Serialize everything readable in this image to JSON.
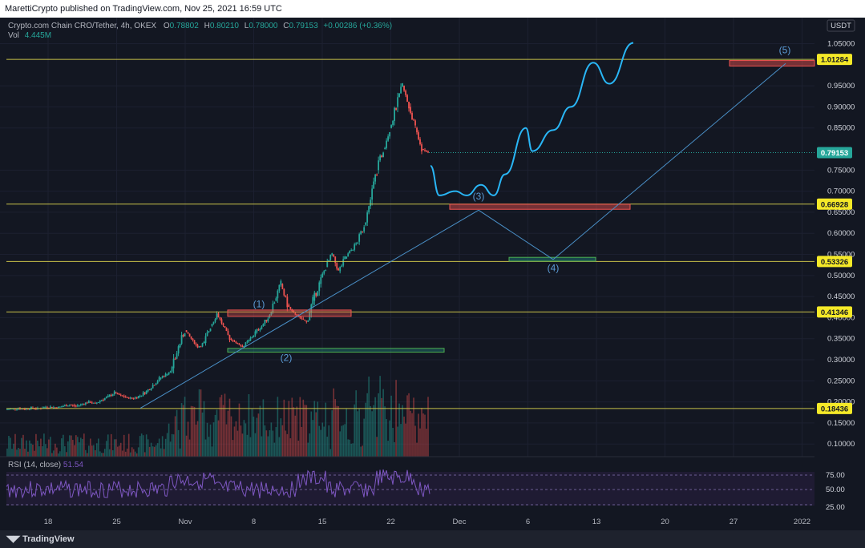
{
  "publish_line": "MarettiCrypto published on TradingView.com, Nov 25, 2021 16:59 UTC",
  "footer_brand": "TradingView",
  "header": {
    "symbol": "Crypto.com Chain CRO/Tether, 4h, OKEX",
    "open_label": "O",
    "open": "0.78802",
    "high_label": "H",
    "high": "0.80210",
    "low_label": "L",
    "low": "0.78000",
    "close_label": "C",
    "close": "0.79153",
    "change": "+0.00286 (+0.36%)",
    "vol_label": "Vol",
    "vol": "4.445M"
  },
  "chart_data": {
    "type": "candlestick",
    "currency": "USDT",
    "y_ticks": [
      "1.05000",
      "0.95000",
      "0.90000",
      "0.85000",
      "0.75000",
      "0.70000",
      "0.65000",
      "0.60000",
      "0.55000",
      "0.50000",
      "0.45000",
      "0.40000",
      "0.35000",
      "0.30000",
      "0.25000",
      "0.20000",
      "0.15000",
      "0.10000"
    ],
    "ylim": [
      0.07,
      1.07
    ],
    "x_ticks": [
      "18",
      "25",
      "Nov",
      "8",
      "15",
      "22",
      "Dec",
      "6",
      "13",
      "20",
      "27",
      "2022"
    ],
    "horizontal_levels": [
      {
        "value": 1.01284,
        "label": "1.01284"
      },
      {
        "value": 0.66928,
        "label": "0.66928"
      },
      {
        "value": 0.53326,
        "label": "0.53326"
      },
      {
        "value": 0.41346,
        "label": "0.41346"
      },
      {
        "value": 0.18436,
        "label": "0.18436"
      }
    ],
    "last_price": {
      "value": 0.79153,
      "label": "0.79153"
    },
    "wave_labels": [
      "(1)",
      "(2)",
      "(3)",
      "(4)",
      "(5)"
    ],
    "price_path": [
      [
        0.182,
        0.184
      ],
      [
        0.183,
        0.185
      ],
      [
        0.184,
        0.183
      ],
      [
        0.183,
        0.186
      ],
      [
        0.186,
        0.184
      ],
      [
        0.184,
        0.187
      ],
      [
        0.187,
        0.188
      ],
      [
        0.188,
        0.186
      ],
      [
        0.186,
        0.19
      ],
      [
        0.19,
        0.193
      ],
      [
        0.193,
        0.19
      ],
      [
        0.19,
        0.195
      ],
      [
        0.195,
        0.2
      ],
      [
        0.2,
        0.196
      ],
      [
        0.196,
        0.205
      ],
      [
        0.205,
        0.212
      ],
      [
        0.212,
        0.222
      ],
      [
        0.222,
        0.215
      ],
      [
        0.215,
        0.21
      ],
      [
        0.21,
        0.208
      ],
      [
        0.208,
        0.215
      ],
      [
        0.215,
        0.225
      ],
      [
        0.225,
        0.24
      ],
      [
        0.24,
        0.255
      ],
      [
        0.255,
        0.265
      ],
      [
        0.265,
        0.28
      ],
      [
        0.28,
        0.33
      ],
      [
        0.33,
        0.37
      ],
      [
        0.37,
        0.35
      ],
      [
        0.35,
        0.33
      ],
      [
        0.33,
        0.34
      ],
      [
        0.34,
        0.38
      ],
      [
        0.38,
        0.41
      ],
      [
        0.41,
        0.38
      ],
      [
        0.38,
        0.35
      ],
      [
        0.35,
        0.34
      ],
      [
        0.34,
        0.33
      ],
      [
        0.33,
        0.345
      ],
      [
        0.345,
        0.365
      ],
      [
        0.365,
        0.38
      ],
      [
        0.38,
        0.4
      ],
      [
        0.4,
        0.44
      ],
      [
        0.44,
        0.48
      ],
      [
        0.48,
        0.43
      ],
      [
        0.43,
        0.41
      ],
      [
        0.41,
        0.4
      ],
      [
        0.4,
        0.39
      ],
      [
        0.39,
        0.44
      ],
      [
        0.44,
        0.48
      ],
      [
        0.48,
        0.52
      ],
      [
        0.52,
        0.55
      ],
      [
        0.55,
        0.51
      ],
      [
        0.51,
        0.54
      ],
      [
        0.54,
        0.56
      ],
      [
        0.56,
        0.58
      ],
      [
        0.58,
        0.62
      ],
      [
        0.62,
        0.68
      ],
      [
        0.68,
        0.75
      ],
      [
        0.75,
        0.8
      ],
      [
        0.8,
        0.85
      ],
      [
        0.85,
        0.9
      ],
      [
        0.9,
        0.95
      ],
      [
        0.95,
        0.9
      ],
      [
        0.9,
        0.85
      ],
      [
        0.85,
        0.8
      ],
      [
        0.8,
        0.792
      ]
    ],
    "projection": [
      [
        0.76,
        0.69
      ],
      [
        0.715,
        0.7
      ],
      [
        0.728,
        0.69
      ],
      [
        0.76,
        0.84
      ],
      [
        0.8,
        0.88
      ],
      [
        0.96,
        1.01
      ],
      [
        0.96,
        1.05
      ]
    ]
  }
}
